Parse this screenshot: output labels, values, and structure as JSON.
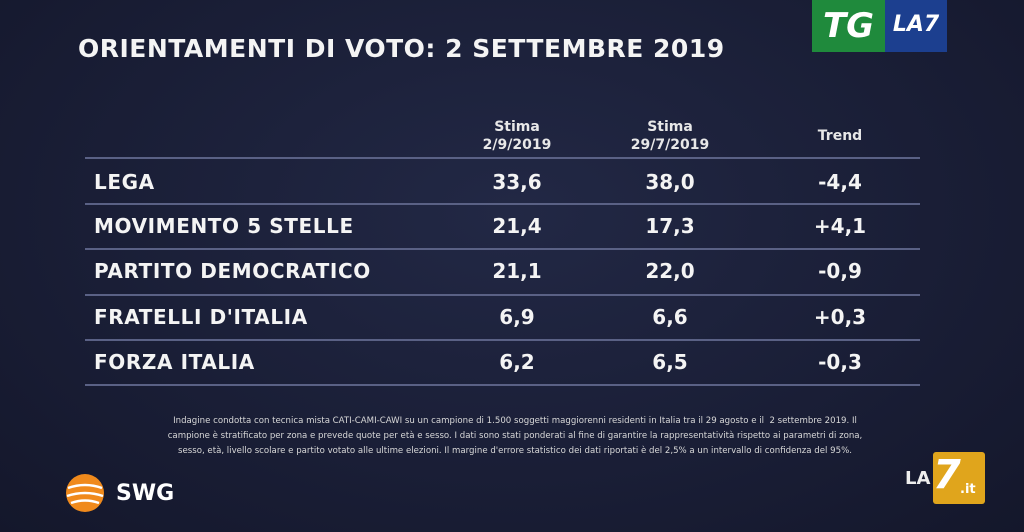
{
  "logo": {
    "tg": "TG",
    "la7": "LA7"
  },
  "title": "ORIENTAMENTI DI VOTO: 2 SETTEMBRE 2019",
  "table": {
    "headers": [
      [
        "Stima",
        "2/9/2019"
      ],
      [
        "Stima",
        "29/7/2019"
      ],
      [
        "Trend"
      ]
    ],
    "rows": [
      [
        "LEGA",
        "33,6",
        "38,0",
        "-4,4"
      ],
      [
        "MOVIMENTO 5 STELLE",
        "21,4",
        "17,3",
        "+4,1"
      ],
      [
        "PARTITO DEMOCRATICO",
        "21,1",
        "22,0",
        "-0,9"
      ],
      [
        "FRATELLI D'ITALIA",
        "6,9",
        "6,6",
        "+0,3"
      ],
      [
        "FORZA ITALIA",
        "6,2",
        "6,5",
        "-0,3"
      ]
    ]
  },
  "footnote": [
    "Indagine condotta con tecnica mista CATI-CAMI-CAWI su un campione di 1.500 soggetti maggiorenni residenti in Italia tra il 29 agosto e il  2 settembre 2019. Il",
    "campione è stratificato per zona e prevede quote per età e sesso. I dati sono stati ponderati al fine di garantire la rappresentatività rispetto ai parametri di zona,",
    "sesso, età, livello scolare e partito votato alle ultime elezioni. Il margine d'errore statistico dei dati riportati è del 2,5% a un intervallo di confidenza del 95%."
  ],
  "source": "SWG",
  "watermark": [
    "LA",
    "7",
    ".it"
  ]
}
